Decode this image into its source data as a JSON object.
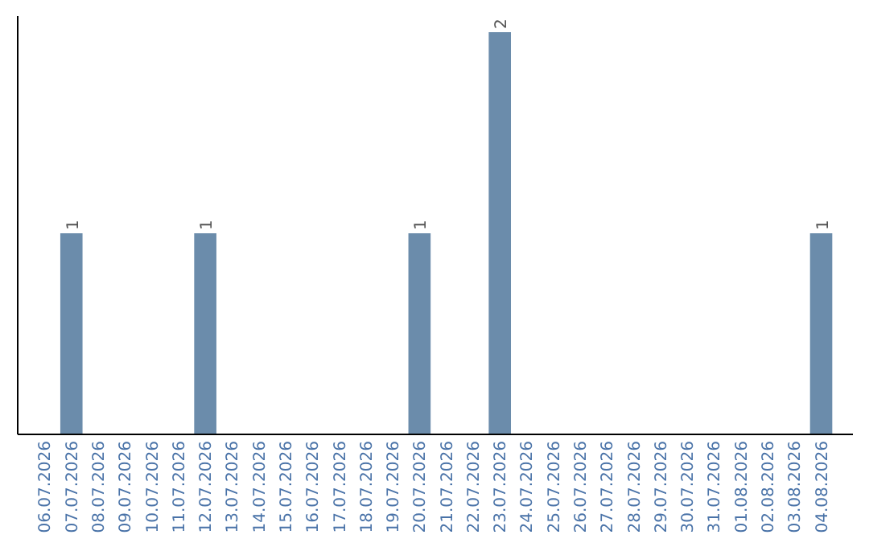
{
  "chart_data": {
    "type": "bar",
    "categories": [
      "06.07.2026",
      "07.07.2026",
      "08.07.2026",
      "09.07.2026",
      "10.07.2026",
      "11.07.2026",
      "12.07.2026",
      "13.07.2026",
      "14.07.2026",
      "15.07.2026",
      "16.07.2026",
      "17.07.2026",
      "18.07.2026",
      "19.07.2026",
      "20.07.2026",
      "21.07.2026",
      "22.07.2026",
      "23.07.2026",
      "24.07.2026",
      "25.07.2026",
      "26.07.2026",
      "27.07.2026",
      "28.07.2026",
      "29.07.2026",
      "30.07.2026",
      "31.07.2026",
      "01.08.2026",
      "02.08.2026",
      "03.08.2026",
      "04.08.2026"
    ],
    "values": [
      0,
      1,
      0,
      0,
      0,
      0,
      1,
      0,
      0,
      0,
      0,
      0,
      0,
      0,
      1,
      0,
      0,
      2,
      0,
      0,
      0,
      0,
      0,
      0,
      0,
      0,
      0,
      0,
      0,
      1
    ],
    "value_labels": [
      null,
      "1",
      null,
      null,
      null,
      null,
      "1",
      null,
      null,
      null,
      null,
      null,
      null,
      null,
      "1",
      null,
      null,
      "2",
      null,
      null,
      null,
      null,
      null,
      null,
      null,
      null,
      null,
      null,
      null,
      "1"
    ],
    "color": "#6b8cab"
  }
}
